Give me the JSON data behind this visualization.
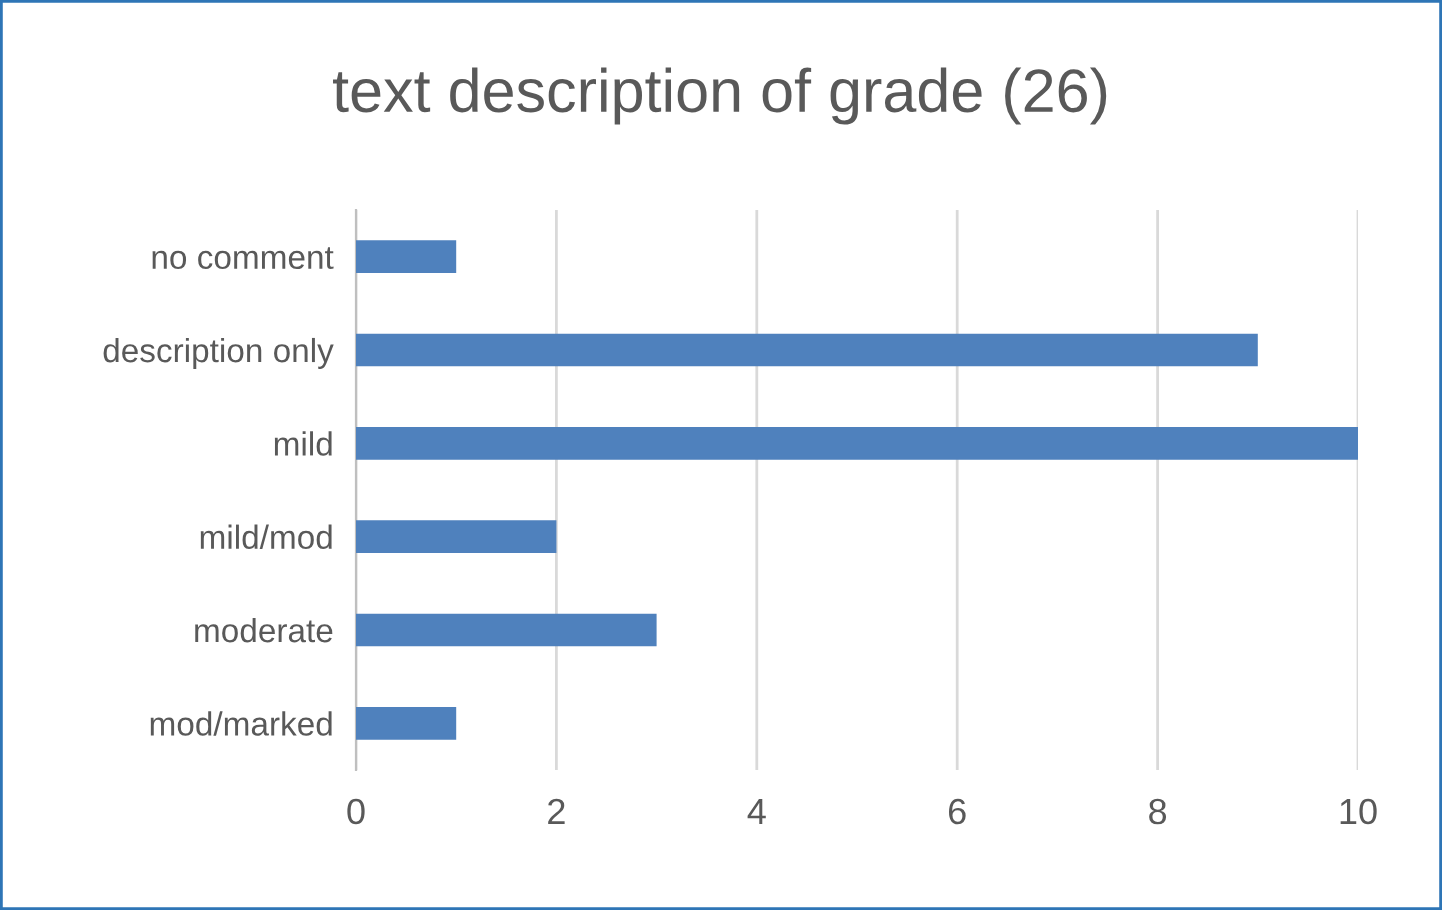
{
  "chart_data": {
    "type": "bar",
    "orientation": "horizontal",
    "title": "text description of grade (26)",
    "categories": [
      "no comment",
      "description only",
      "mild",
      "mild/mod",
      "moderate",
      "mod/marked"
    ],
    "values": [
      1,
      9,
      10,
      2,
      3,
      1
    ],
    "color": "#4f81bd",
    "xlim": [
      0,
      10
    ],
    "xticks": [
      0,
      2,
      4,
      6,
      8,
      10
    ],
    "grid": "x",
    "legend": false
  }
}
